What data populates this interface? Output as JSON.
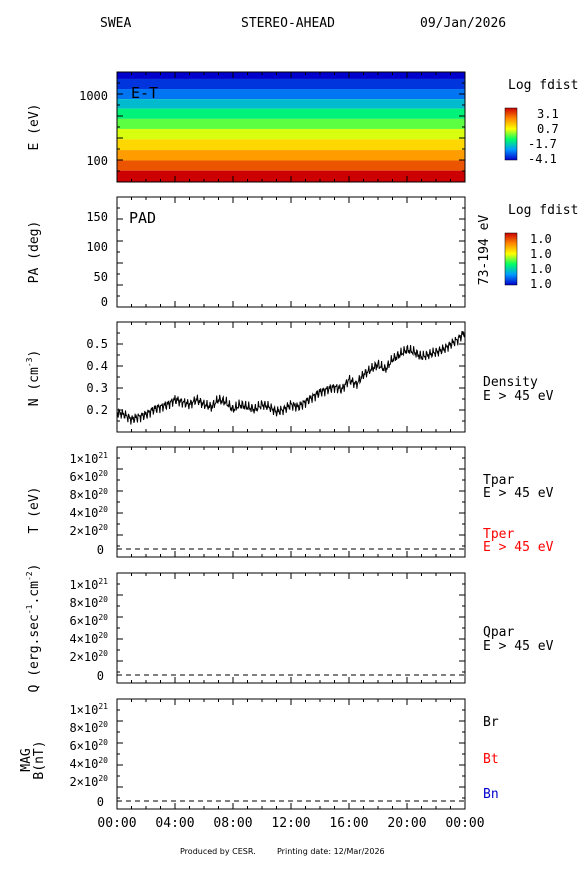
{
  "header": {
    "instrument": "SWEA",
    "spacecraft": "STEREO-AHEAD",
    "date": "09/Jan/2026"
  },
  "footer": {
    "produced_by": "Produced by CESR.",
    "printing_date": "Printing date: 12/Mar/2026"
  },
  "colors": {
    "black": "#000000",
    "red": "#ff0000",
    "blue": "#0000cc"
  },
  "time_ticks": [
    "00:00",
    "04:00",
    "08:00",
    "12:00",
    "16:00",
    "20:00",
    "00:00"
  ],
  "chart_data": [
    {
      "type": "heatmap",
      "ylabel": "E (eV)",
      "annotation": "E-T",
      "yscale": "log",
      "ytick_labels": [
        "1000",
        "100"
      ],
      "ylim": [
        50,
        2200
      ],
      "energy_bands_ev": [
        2000,
        1500,
        1000,
        750,
        520,
        370,
        260,
        180,
        125,
        88,
        62
      ],
      "band_log_fdist": [
        -4.1,
        -3.6,
        -3.0,
        -2.2,
        -1.4,
        -0.7,
        0.0,
        0.7,
        1.4,
        2.2,
        3.1
      ],
      "colorbar": {
        "title": "Log fdist",
        "tick_labels": [
          "3.1",
          "0.7",
          "-1.7",
          "-4.1"
        ],
        "range": [
          -4.1,
          3.1
        ]
      }
    },
    {
      "type": "line",
      "ylabel": "PA (deg)",
      "annotation": "PAD",
      "right_label": "73-194 eV",
      "ylim": [
        0,
        180
      ],
      "ytick_labels": [
        "150",
        "100",
        "50",
        "0"
      ],
      "colorbar": {
        "title": "Log fdist",
        "tick_labels": [
          "1.0",
          "1.0",
          "1.0",
          "1.0"
        ]
      }
    },
    {
      "type": "line",
      "ylabel": "N (cm",
      "ylabel_sup": "-3",
      "ylabel_close": ")",
      "ylim": [
        0.13,
        0.57
      ],
      "ytick_labels": [
        "0.5",
        "0.4",
        "0.3",
        "0.2"
      ],
      "legend": [
        "Density",
        "E > 45 eV"
      ],
      "x_hours": [
        0,
        0.5,
        1,
        1.5,
        2,
        2.5,
        3,
        3.5,
        4,
        4.5,
        5,
        5.5,
        6,
        6.5,
        7,
        7.5,
        8,
        8.5,
        9,
        9.5,
        10,
        10.5,
        11,
        11.5,
        12,
        12.5,
        13,
        13.5,
        14,
        14.5,
        15,
        15.5,
        16,
        16.5,
        17,
        17.5,
        18,
        18.5,
        19,
        19.5,
        20,
        20.5,
        21,
        21.5,
        22,
        22.5,
        23,
        23.5,
        24
      ],
      "values": [
        0.21,
        0.2,
        0.18,
        0.19,
        0.2,
        0.22,
        0.23,
        0.24,
        0.26,
        0.25,
        0.24,
        0.26,
        0.24,
        0.23,
        0.26,
        0.25,
        0.22,
        0.24,
        0.23,
        0.22,
        0.24,
        0.23,
        0.21,
        0.22,
        0.24,
        0.23,
        0.25,
        0.27,
        0.29,
        0.3,
        0.31,
        0.3,
        0.34,
        0.32,
        0.36,
        0.38,
        0.4,
        0.38,
        0.42,
        0.44,
        0.46,
        0.45,
        0.43,
        0.44,
        0.45,
        0.46,
        0.48,
        0.5,
        0.53
      ]
    },
    {
      "type": "line",
      "ylabel": "T (eV)",
      "ylim": [
        -1.5e+20,
        1.15e+21
      ],
      "ytick_labels": [
        "1×10",
        "8×10",
        "6×10",
        "4×10",
        "2×10",
        "0"
      ],
      "ytick_exps": [
        "21",
        "20",
        "20",
        "20",
        "20",
        ""
      ],
      "series": [
        {
          "name": "Tpar",
          "sub": "E > 45 eV",
          "color": "#000000",
          "values": [
            0,
            0
          ]
        },
        {
          "name": "Tper",
          "sub": "E > 45 eV",
          "color": "#ff0000",
          "values": [
            0,
            0
          ]
        }
      ]
    },
    {
      "type": "line",
      "ylabel": "Q (erg.sec",
      "ylabel_sup1": "-1",
      "ylabel_mid": ".cm",
      "ylabel_sup2": "-2",
      "ylabel_close": ")",
      "ylim": [
        -1.5e+20,
        1.15e+21
      ],
      "ytick_labels": [
        "1×10",
        "8×10",
        "6×10",
        "4×10",
        "2×10",
        "0"
      ],
      "ytick_exps": [
        "21",
        "20",
        "20",
        "20",
        "20",
        ""
      ],
      "series": [
        {
          "name": "Qpar",
          "sub": "E > 45 eV",
          "color": "#000000",
          "values": [
            0,
            0
          ]
        }
      ]
    },
    {
      "type": "line",
      "ylabel": "MAG",
      "ylabel2": "B(nT)",
      "ylim": [
        -1.5e+20,
        1.15e+21
      ],
      "ytick_labels": [
        "1×10",
        "8×10",
        "6×10",
        "4×10",
        "2×10",
        "0"
      ],
      "ytick_exps": [
        "21",
        "20",
        "20",
        "20",
        "20",
        ""
      ],
      "series": [
        {
          "name": "Br",
          "color": "#000000",
          "values": [
            0,
            0
          ]
        },
        {
          "name": "Bt",
          "color": "#ff0000",
          "values": [
            0,
            0
          ]
        },
        {
          "name": "Bn",
          "color": "#0000cc",
          "values": [
            0,
            0
          ]
        }
      ]
    }
  ]
}
